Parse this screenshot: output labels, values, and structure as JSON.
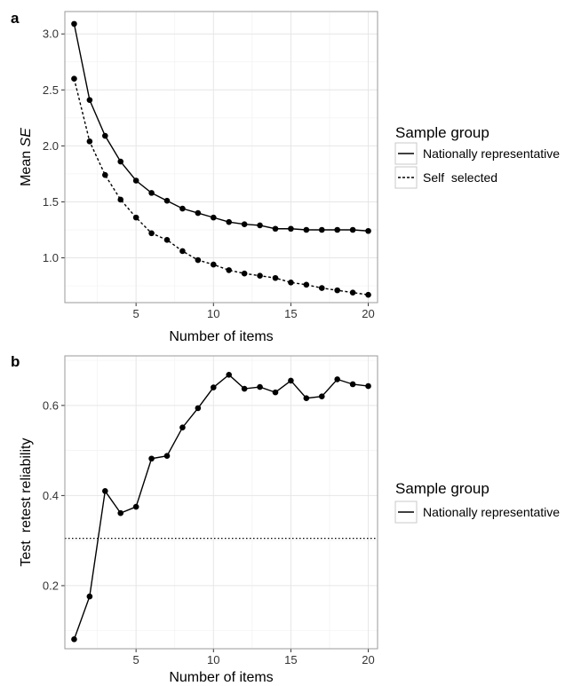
{
  "chart_data": [
    {
      "panel": "a",
      "type": "line",
      "xlabel": "Number of items",
      "ylabel_prefix": "Mean ",
      "ylabel_italic": "SE",
      "xlim": [
        0.4,
        20.6
      ],
      "ylim": [
        0.6,
        3.2
      ],
      "x_ticks": [
        5,
        10,
        15,
        20
      ],
      "y_ticks": [
        1.0,
        1.5,
        2.0,
        2.5,
        3.0
      ],
      "y_tick_labels": [
        "1.0",
        "1.5",
        "2.0",
        "2.5",
        "3.0"
      ],
      "x": [
        1,
        2,
        3,
        4,
        5,
        6,
        7,
        8,
        9,
        10,
        11,
        12,
        13,
        14,
        15,
        16,
        17,
        18,
        19,
        20
      ],
      "grid": true,
      "legend": {
        "title": "Sample group",
        "placement": "right"
      },
      "series": [
        {
          "name": "Nationally representative",
          "linestyle": "solid",
          "values": [
            3.09,
            2.41,
            2.09,
            1.86,
            1.69,
            1.58,
            1.51,
            1.44,
            1.4,
            1.36,
            1.32,
            1.3,
            1.29,
            1.26,
            1.26,
            1.25,
            1.25,
            1.25,
            1.25,
            1.24
          ]
        },
        {
          "name": "Self  selected",
          "linestyle": "dashed",
          "values": [
            2.6,
            2.04,
            1.74,
            1.52,
            1.36,
            1.22,
            1.16,
            1.06,
            0.98,
            0.94,
            0.89,
            0.86,
            0.84,
            0.82,
            0.78,
            0.76,
            0.73,
            0.71,
            0.69,
            0.67
          ]
        }
      ]
    },
    {
      "panel": "b",
      "type": "line",
      "xlabel": "Number of items",
      "ylabel": "Test  retest reliability",
      "xlim": [
        0.4,
        20.6
      ],
      "ylim": [
        0.06,
        0.71
      ],
      "x_ticks": [
        5,
        10,
        15,
        20
      ],
      "y_ticks": [
        0.2,
        0.4,
        0.6
      ],
      "y_tick_labels": [
        "0.2",
        "0.4",
        "0.6"
      ],
      "x": [
        1,
        2,
        3,
        4,
        5,
        6,
        7,
        8,
        9,
        10,
        11,
        12,
        13,
        14,
        15,
        16,
        17,
        18,
        19,
        20
      ],
      "grid": true,
      "reference_line": {
        "y": 0.305,
        "linestyle": "dotted"
      },
      "legend": {
        "title": "Sample group",
        "placement": "right"
      },
      "series": [
        {
          "name": "Nationally representative",
          "linestyle": "solid",
          "values": [
            0.081,
            0.176,
            0.41,
            0.361,
            0.375,
            0.482,
            0.488,
            0.551,
            0.594,
            0.64,
            0.668,
            0.637,
            0.641,
            0.629,
            0.655,
            0.616,
            0.62,
            0.658,
            0.647,
            0.643
          ]
        }
      ]
    }
  ]
}
